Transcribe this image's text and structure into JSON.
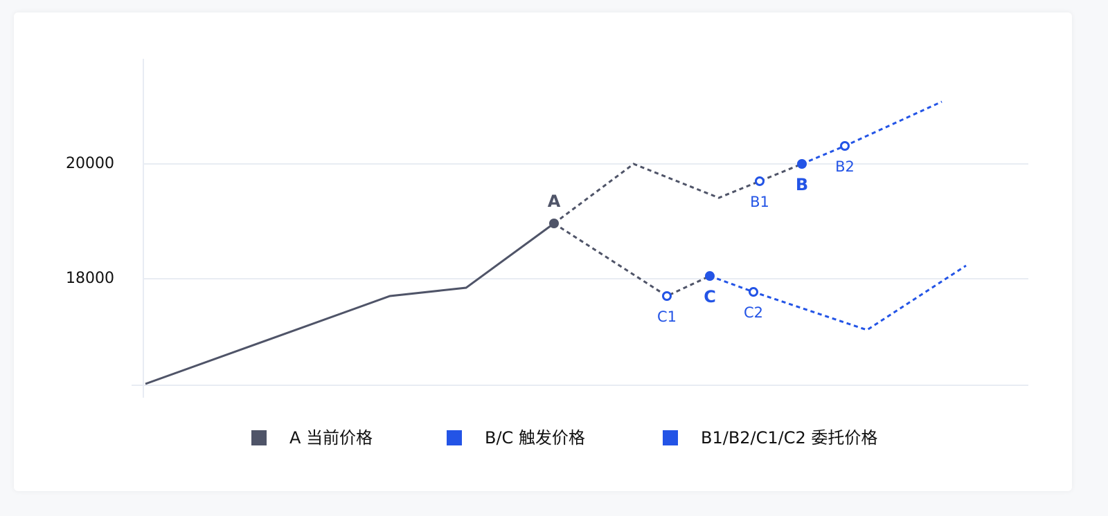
{
  "chart_data": {
    "type": "line",
    "ylim": [
      16145,
      21831
    ],
    "yticks": [
      18000,
      20000
    ],
    "xlim": [
      20.7,
      148.5
    ],
    "grid": true,
    "series": [
      {
        "color": "#4f5468",
        "dashed": false,
        "x": [
          21,
          56.3,
          67.3,
          80
        ],
        "values": [
          16169,
          17699,
          17843,
          18964
        ]
      },
      {
        "color": "#4f5468",
        "dashed": true,
        "x": [
          80,
          91.5,
          103.8,
          109.7,
          115.8
        ],
        "values": [
          18964,
          20000,
          19410,
          19699,
          20000
        ]
      },
      {
        "color": "#2354e6",
        "dashed": true,
        "x": [
          115.8,
          122,
          136
        ],
        "values": [
          20000,
          20313,
          21084
        ]
      },
      {
        "color": "#4f5468",
        "dashed": true,
        "x": [
          80,
          96.3,
          102.5
        ],
        "values": [
          18964,
          17699,
          18048
        ]
      },
      {
        "color": "#2354e6",
        "dashed": true,
        "x": [
          102.5,
          108.8,
          125.2,
          139.5
        ],
        "values": [
          18048,
          17771,
          17108,
          18229
        ]
      }
    ],
    "points": [
      {
        "label": "A",
        "x": 80,
        "y": 18964,
        "color": "#4f5468",
        "filled": true,
        "label_above": true
      },
      {
        "label": "B1",
        "x": 109.7,
        "y": 19699,
        "color": "#2354e6",
        "filled": false,
        "label_above": false
      },
      {
        "label": "B",
        "x": 115.8,
        "y": 20000,
        "color": "#2354e6",
        "filled": true,
        "label_above": false
      },
      {
        "label": "B2",
        "x": 122,
        "y": 20313,
        "color": "#2354e6",
        "filled": false,
        "label_above": false
      },
      {
        "label": "C1",
        "x": 96.3,
        "y": 17699,
        "color": "#2354e6",
        "filled": false,
        "label_above": false
      },
      {
        "label": "C",
        "x": 102.5,
        "y": 18048,
        "color": "#2354e6",
        "filled": true,
        "label_above": false
      },
      {
        "label": "C2",
        "x": 108.8,
        "y": 17771,
        "color": "#2354e6",
        "filled": false,
        "label_above": false
      }
    ],
    "legend": [
      {
        "label": "A 当前价格",
        "color": "#4f5468"
      },
      {
        "label": "B/C 触发价格",
        "color": "#2354e6"
      },
      {
        "label": "B1/B2/C1/C2 委托价格",
        "color": "#2354e6"
      }
    ]
  }
}
